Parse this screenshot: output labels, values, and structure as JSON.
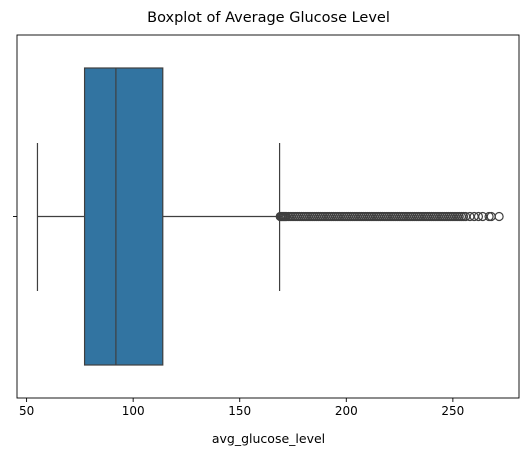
{
  "chart_data": {
    "type": "boxplot",
    "title": "Boxplot of Average Glucose Level",
    "xlabel": "avg_glucose_level",
    "ylabel": "",
    "xlim": [
      45.5,
      281.5
    ],
    "xticks": [
      50,
      100,
      150,
      200,
      250
    ],
    "box": {
      "whisker_low": 55.1,
      "q1": 77.2,
      "median": 91.9,
      "q3": 113.9,
      "whisker_high": 168.7,
      "color": "#3274a1",
      "line_color": "#3f3f3f"
    },
    "outliers": [
      169,
      169.5,
      170,
      170.5,
      171,
      171.5,
      172,
      173,
      174,
      175,
      176,
      177,
      178,
      179,
      180,
      181,
      182,
      183,
      184,
      185,
      186,
      187,
      188,
      189,
      190,
      191,
      192,
      193,
      194,
      195,
      196,
      197,
      198,
      199,
      200,
      201,
      202,
      203,
      204,
      205,
      206,
      207,
      208,
      209,
      210,
      211,
      212,
      213,
      214,
      215,
      216,
      217,
      218,
      219,
      220,
      221,
      222,
      223,
      224,
      225,
      226,
      227,
      228,
      229,
      230,
      231,
      232,
      233,
      234,
      235,
      236,
      237,
      238,
      239,
      240,
      241,
      242,
      243,
      244,
      245,
      246,
      247,
      248,
      249,
      250,
      251,
      252,
      253,
      254,
      255,
      256,
      258,
      260,
      262,
      264,
      267,
      268,
      271.7
    ]
  }
}
